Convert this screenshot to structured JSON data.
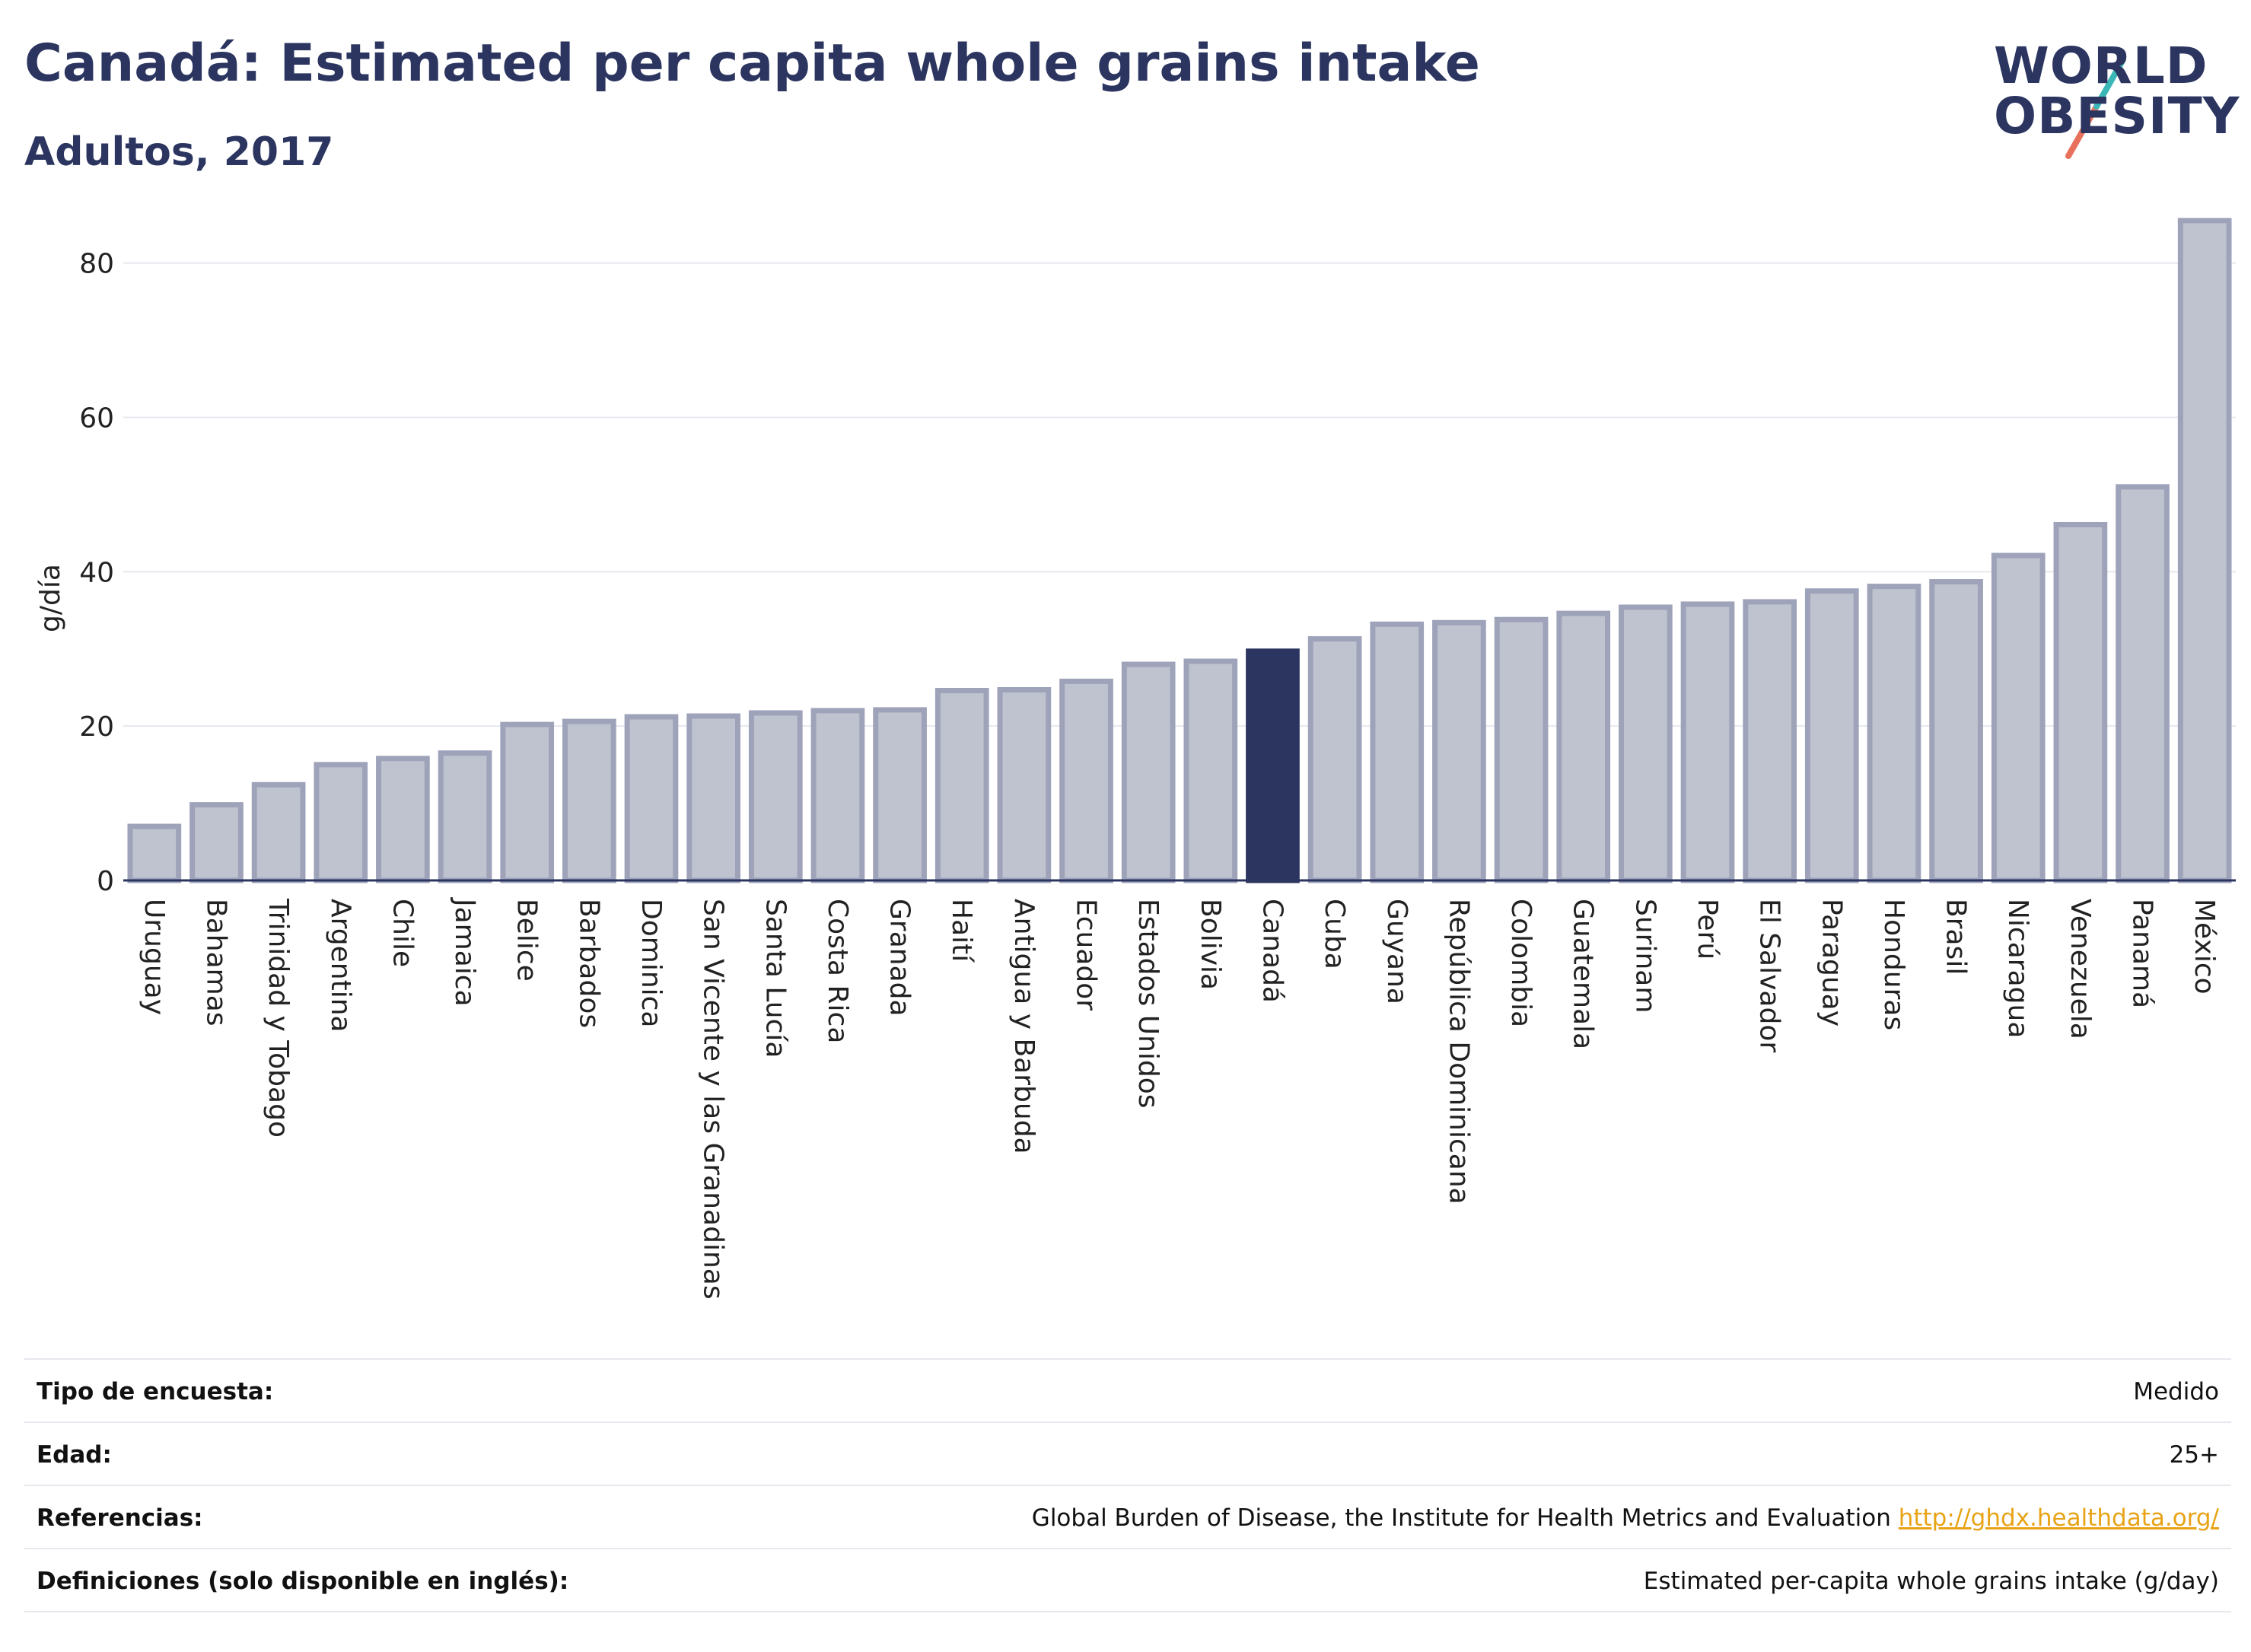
{
  "header": {
    "title": "Canadá: Estimated per capita whole grains intake",
    "subtitle": "Adultos, 2017"
  },
  "logo": {
    "line1": "WORLD",
    "line2": "OBESITY"
  },
  "chart_data": {
    "type": "bar",
    "ylabel": "g/día",
    "xlabel": "",
    "ylim": [
      0,
      85
    ],
    "yticks": [
      0,
      20,
      40,
      60,
      80
    ],
    "grid": true,
    "highlight": "Canadá",
    "colors": {
      "bar": "#bfc3cf",
      "bar_edge": "#9ea3ba",
      "highlight": "#2b3560",
      "grid": "#e6e8ee",
      "axis": "#2b3560"
    },
    "categories": [
      "Uruguay",
      "Bahamas",
      "Trinidad y Tobago",
      "Argentina",
      "Chile",
      "Jamaica",
      "Belice",
      "Barbados",
      "Dominica",
      "San Vicente y las Granadinas",
      "Santa Lucía",
      "Costa Rica",
      "Granada",
      "Haití",
      "Antigua y Barbuda",
      "Ecuador",
      "Estados Unidos",
      "Bolivia",
      "Canadá",
      "Cuba",
      "Guyana",
      "República Dominicana",
      "Colombia",
      "Guatemala",
      "Surinam",
      "Perú",
      "El Salvador",
      "Paraguay",
      "Honduras",
      "Brasil",
      "Nicaragua",
      "Venezuela",
      "Panamá",
      "México"
    ],
    "values": [
      7.0,
      9.8,
      12.4,
      15.0,
      15.8,
      16.5,
      20.2,
      20.6,
      21.2,
      21.3,
      21.7,
      22.0,
      22.1,
      24.6,
      24.7,
      25.8,
      28.0,
      28.4,
      29.7,
      31.3,
      33.2,
      33.4,
      33.8,
      34.6,
      35.4,
      35.8,
      36.1,
      37.5,
      38.1,
      38.7,
      42.1,
      46.1,
      51.0,
      85.5
    ]
  },
  "meta": [
    {
      "label": "Tipo de encuesta:",
      "value": "Medido"
    },
    {
      "label": "Edad:",
      "value": "25+"
    },
    {
      "label": "Referencias:",
      "value": "Global Burden of Disease, the Institute for Health Metrics and Evaluation",
      "link": "http://ghdx.healthdata.org/"
    },
    {
      "label": "Definiciones (solo disponible en inglés):",
      "value": "Estimated per-capita whole grains intake (g/day)"
    }
  ]
}
